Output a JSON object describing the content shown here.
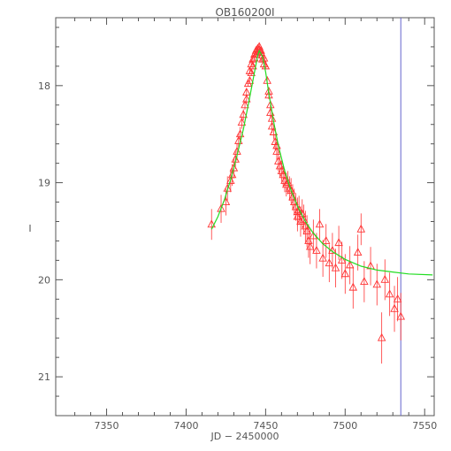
{
  "chart_data": {
    "type": "scatter",
    "title": "OB160200I",
    "xlabel": "JD − 2450000",
    "ylabel": "I",
    "xlim": [
      7318,
      7556
    ],
    "ylim": [
      21.4,
      17.3
    ],
    "y_inverted": true,
    "x_ticks": [
      7350,
      7400,
      7450,
      7500,
      7550
    ],
    "y_ticks": [
      18,
      19,
      20,
      21
    ],
    "x_tick_labels": [
      "7350",
      "7400",
      "7450",
      "7500",
      "7550"
    ],
    "y_tick_labels": [
      "18",
      "19",
      "20",
      "21"
    ],
    "grid": false,
    "legend": "none",
    "vline": {
      "x": 7535,
      "color": "#6666cc"
    },
    "colors": {
      "points": "#ff3333",
      "model": "#22dd22",
      "axes": "#555555"
    },
    "model_curve": {
      "x": [
        7416,
        7420,
        7424,
        7428,
        7432,
        7436,
        7440,
        7443,
        7445,
        7446,
        7448,
        7450,
        7452,
        7455,
        7458,
        7462,
        7466,
        7470,
        7475,
        7480,
        7486,
        7492,
        7500,
        7510,
        7520,
        7530,
        7540,
        7555
      ],
      "y": [
        19.48,
        19.35,
        19.18,
        18.97,
        18.72,
        18.45,
        18.12,
        17.86,
        17.69,
        17.64,
        17.7,
        17.86,
        18.08,
        18.37,
        18.62,
        18.88,
        19.08,
        19.24,
        19.4,
        19.52,
        19.63,
        19.71,
        19.79,
        19.86,
        19.9,
        19.92,
        19.94,
        19.95
      ]
    },
    "series": [
      {
        "x": [
          7416,
          7422,
          7425,
          7426,
          7428,
          7429,
          7430,
          7431,
          7432,
          7433,
          7434,
          7435,
          7436,
          7437,
          7438,
          7438,
          7439,
          7440,
          7440,
          7441,
          7441,
          7442,
          7442,
          7443,
          7443,
          7444,
          7444,
          7445,
          7445,
          7446,
          7446,
          7447,
          7447,
          7448,
          7448,
          7449,
          7449,
          7450,
          7451,
          7452,
          7452,
          7453,
          7453,
          7454,
          7454,
          7455,
          7456,
          7457,
          7457,
          7458,
          7459,
          7460,
          7461,
          7462,
          7463,
          7464,
          7465,
          7466,
          7467,
          7468,
          7469,
          7470,
          7470,
          7471,
          7472,
          7473,
          7474,
          7475,
          7476,
          7477,
          7478,
          7480,
          7482,
          7484,
          7486,
          7488,
          7490,
          7492,
          7494,
          7496,
          7498,
          7500,
          7503,
          7505,
          7508,
          7510,
          7512,
          7516,
          7520,
          7523,
          7525,
          7528,
          7531,
          7533,
          7535
        ],
        "y": [
          19.43,
          19.27,
          19.2,
          19.06,
          18.98,
          18.92,
          18.85,
          18.76,
          18.68,
          18.57,
          18.5,
          18.38,
          18.3,
          18.2,
          18.14,
          18.07,
          17.98,
          17.95,
          17.85,
          17.87,
          17.78,
          17.8,
          17.73,
          17.72,
          17.68,
          17.68,
          17.64,
          17.65,
          17.62,
          17.6,
          17.63,
          17.64,
          17.66,
          17.69,
          17.73,
          17.72,
          17.78,
          17.8,
          17.95,
          18.06,
          18.1,
          18.2,
          18.28,
          18.34,
          18.42,
          18.48,
          18.58,
          18.62,
          18.68,
          18.78,
          18.83,
          18.88,
          18.92,
          18.98,
          19.02,
          19.0,
          19.06,
          19.08,
          19.15,
          19.2,
          19.25,
          19.3,
          19.35,
          19.28,
          19.4,
          19.32,
          19.38,
          19.45,
          19.5,
          19.6,
          19.66,
          19.55,
          19.7,
          19.43,
          19.78,
          19.6,
          19.83,
          19.7,
          19.88,
          19.62,
          19.8,
          19.94,
          19.85,
          20.08,
          19.72,
          19.48,
          20.02,
          19.86,
          20.05,
          20.6,
          20.0,
          20.15,
          20.3,
          20.2,
          20.38
        ]
      }
    ]
  }
}
